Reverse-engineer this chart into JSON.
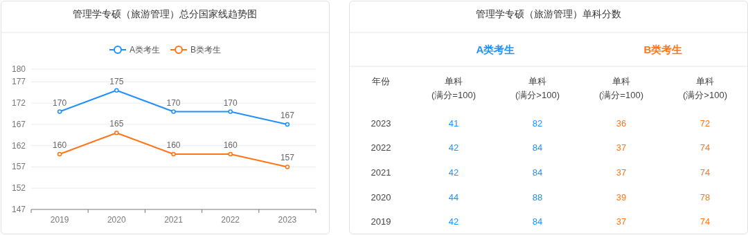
{
  "chart_data": [
    {
      "type": "line",
      "title": "管理学专硕（旅游管理）总分国家线趋势图",
      "categories": [
        "2019",
        "2020",
        "2021",
        "2022",
        "2023"
      ],
      "series": [
        {
          "name": "A类考生",
          "color": "#1e90ff",
          "values": [
            170,
            175,
            170,
            170,
            167
          ]
        },
        {
          "name": "B类考生",
          "color": "#ff7518",
          "values": [
            160,
            165,
            160,
            160,
            157
          ]
        }
      ],
      "ylim": [
        147,
        180
      ],
      "yticks": [
        147,
        152,
        157,
        162,
        167,
        172,
        177,
        180
      ],
      "grid": "y",
      "legend": "top",
      "marker": "circle",
      "line_style": "solid",
      "data_labels": true
    },
    {
      "type": "heatmap",
      "title": "管理学专硕（旅游管理）单科分数",
      "ylabel": "年份",
      "categories": [
        "单科\n(满分=100)",
        "单科\n(满分>100)",
        "单科\n(满分=100)",
        "单科\n(满分>100)"
      ],
      "y_categories": [
        "2023",
        "2022",
        "2021",
        "2020",
        "2019"
      ],
      "cells": [
        [
          41,
          82,
          36,
          72
        ],
        [
          42,
          84,
          37,
          74
        ],
        [
          42,
          84,
          37,
          74
        ],
        [
          44,
          88,
          39,
          78
        ],
        [
          42,
          84,
          37,
          74
        ]
      ],
      "colors": [
        "#1e90ff",
        "#1e90ff",
        "#ff7518",
        "#ff7518"
      ],
      "annotations": [
        "A类考生",
        "B类考生"
      ],
      "data_labels": true
    }
  ]
}
